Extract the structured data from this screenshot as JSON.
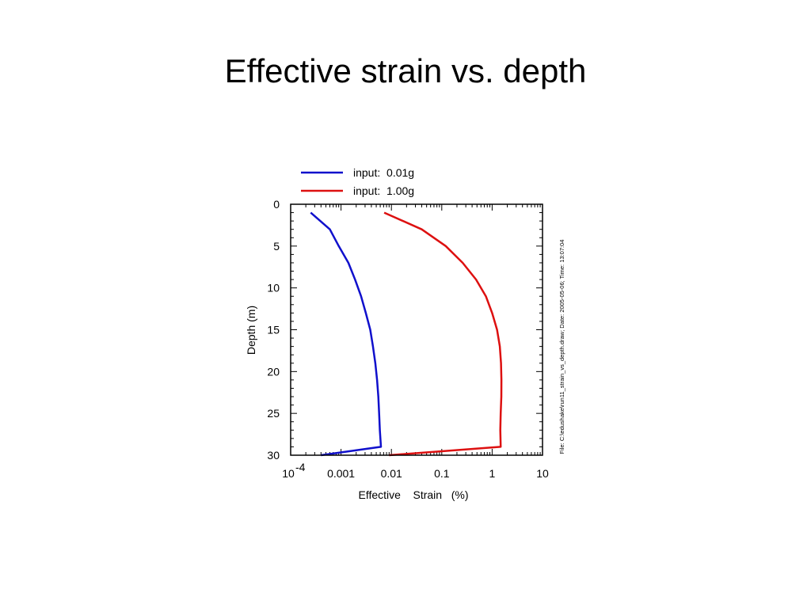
{
  "slide": {
    "title": "Effective strain vs. depth"
  },
  "chart_data": {
    "type": "line",
    "title": "",
    "xlabel": "Effective    Strain   (%)",
    "ylabel": "Depth (m)",
    "x_scale": "log",
    "xlim": [
      0.0001,
      10
    ],
    "ylim": [
      0,
      30
    ],
    "y_inverted": true,
    "x_tick_labels": [
      {
        "value": 0.0001,
        "base": "10",
        "exp": "-4"
      },
      {
        "value": 0.001,
        "text": "0.001"
      },
      {
        "value": 0.01,
        "text": "0.01"
      },
      {
        "value": 0.1,
        "text": "0.1"
      },
      {
        "value": 1,
        "text": "1"
      },
      {
        "value": 10,
        "text": "10"
      }
    ],
    "y_ticks": [
      0,
      5,
      10,
      15,
      20,
      25,
      30
    ],
    "legend_placement": "top-left above plot",
    "side_note": "File: C:\\edushake\\run11_strain_vs_depth.draw; Date: 2005-05-06; Time: 13:07:04",
    "series": [
      {
        "name": "input:  0.01g",
        "color": "#1010cc",
        "points": [
          [
            0.00025,
            1
          ],
          [
            0.0006,
            3
          ],
          [
            0.0009,
            5
          ],
          [
            0.0014,
            7
          ],
          [
            0.0019,
            9
          ],
          [
            0.0025,
            11
          ],
          [
            0.0031,
            13
          ],
          [
            0.0038,
            15
          ],
          [
            0.0043,
            17
          ],
          [
            0.0048,
            19
          ],
          [
            0.0052,
            21
          ],
          [
            0.0055,
            23
          ],
          [
            0.0057,
            25
          ],
          [
            0.0059,
            27
          ],
          [
            0.0062,
            29
          ],
          [
            0.0004,
            30
          ]
        ]
      },
      {
        "name": "input:  1.00g",
        "color": "#dd1010",
        "points": [
          [
            0.0072,
            1
          ],
          [
            0.04,
            3
          ],
          [
            0.12,
            5
          ],
          [
            0.26,
            7
          ],
          [
            0.48,
            9
          ],
          [
            0.75,
            11
          ],
          [
            1.0,
            13
          ],
          [
            1.25,
            15
          ],
          [
            1.42,
            17
          ],
          [
            1.5,
            19
          ],
          [
            1.53,
            21
          ],
          [
            1.52,
            23
          ],
          [
            1.48,
            25
          ],
          [
            1.45,
            27
          ],
          [
            1.48,
            29
          ],
          [
            0.009,
            30
          ]
        ]
      }
    ]
  }
}
